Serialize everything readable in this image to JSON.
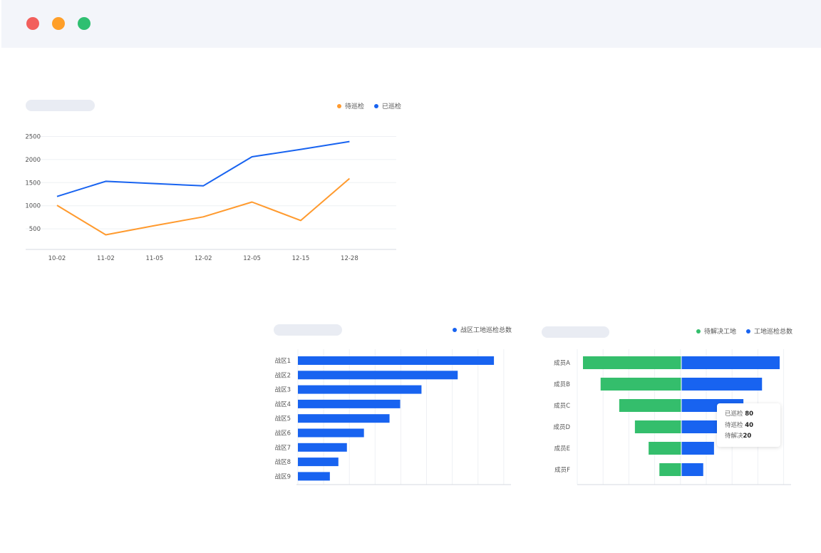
{
  "colors": {
    "window_red": "#f25f5c",
    "window_orange": "#ff9f29",
    "window_green": "#2fbf71",
    "orange": "#ff9a2e",
    "blue": "#1863f0",
    "green": "#34be6c"
  },
  "chart_data": [
    {
      "type": "line",
      "title": "",
      "x": [
        "10-02",
        "11-02",
        "11-05",
        "12-02",
        "12-05",
        "12-15",
        "12-28"
      ],
      "ylim": [
        0,
        2500
      ],
      "yticks": [
        500,
        1000,
        1500,
        2000,
        2500
      ],
      "grid": true,
      "legend_position": "top-right",
      "series": [
        {
          "name": "待巡检",
          "color": "#ff9a2e",
          "values": [
            1010,
            370,
            570,
            760,
            1080,
            680,
            1590
          ]
        },
        {
          "name": "已巡检",
          "color": "#1863f0",
          "values": [
            1200,
            1530,
            1480,
            1430,
            2060,
            2220,
            2390
          ]
        }
      ]
    },
    {
      "type": "bar",
      "orientation": "horizontal",
      "title": "",
      "categories": [
        "战区1",
        "战区2",
        "战区3",
        "战区4",
        "战区5",
        "战区6",
        "战区7",
        "战区8",
        "战区9"
      ],
      "xlim": [
        0,
        100
      ],
      "grid": true,
      "legend_position": "top-right",
      "series": [
        {
          "name": "战区工地巡检总数",
          "color": "#1863f0",
          "values": [
            92,
            75,
            58,
            48,
            43,
            31,
            23,
            19,
            15
          ]
        }
      ]
    },
    {
      "type": "bar",
      "orientation": "horizontal-diverging",
      "title": "",
      "categories": [
        "成员A",
        "成员B",
        "成员C",
        "成员D",
        "成员E",
        "成员F"
      ],
      "grid": true,
      "legend_position": "top-right",
      "series": [
        {
          "name": "待解决工地",
          "color": "#34be6c",
          "values": [
            100,
            82,
            63,
            47,
            33,
            22
          ]
        },
        {
          "name": "工地巡检总数",
          "color": "#1863f0",
          "values": [
            100,
            82,
            63,
            42,
            33,
            22
          ]
        }
      ],
      "tooltip": {
        "rows": [
          {
            "label": "已巡检",
            "value": "80"
          },
          {
            "label": "待巡检",
            "value": "40"
          },
          {
            "label": "待解决",
            "value": "20"
          }
        ]
      }
    }
  ]
}
